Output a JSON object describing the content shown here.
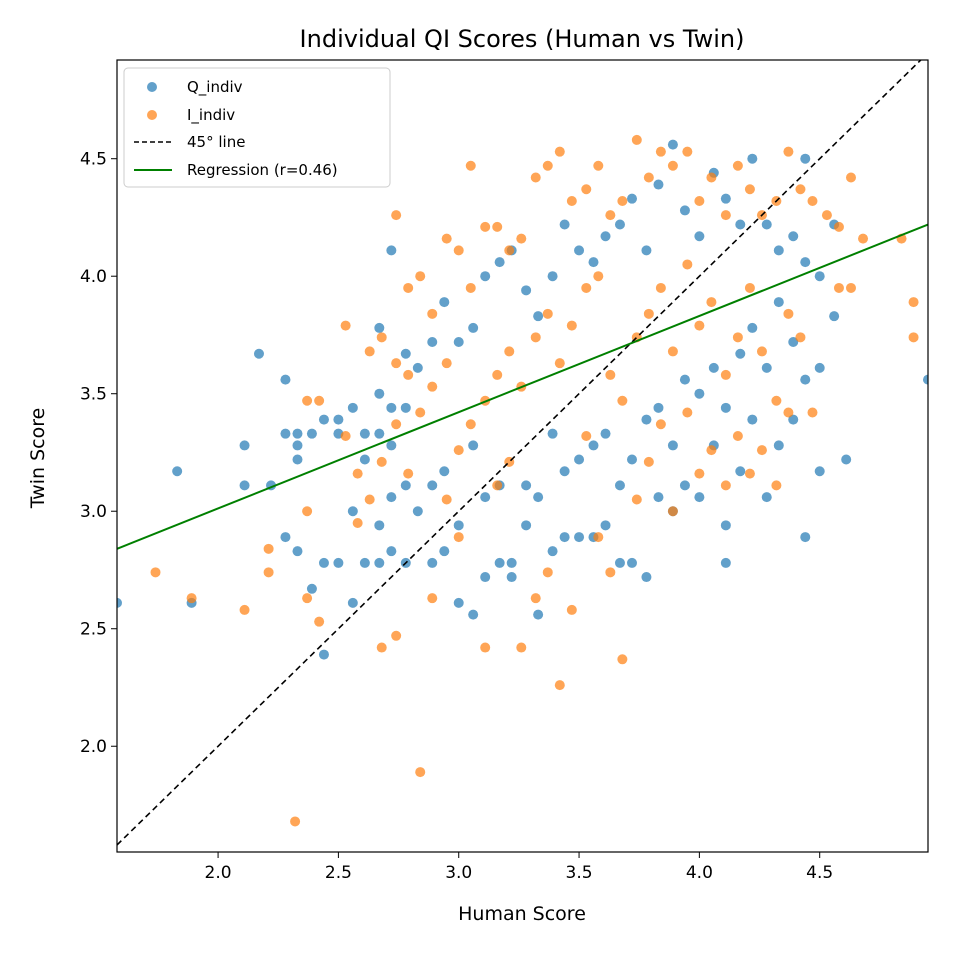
{
  "chart_data": {
    "type": "scatter",
    "title": "Individual QI Scores (Human vs Twin)",
    "xlabel": "Human Score",
    "ylabel": "Twin Score",
    "xlim": [
      1.58,
      4.95
    ],
    "ylim": [
      1.55,
      4.92
    ],
    "xticks": [
      "2.0",
      "2.5",
      "3.0",
      "3.5",
      "4.0",
      "4.5"
    ],
    "yticks": [
      "2.0",
      "2.5",
      "3.0",
      "3.5",
      "4.0",
      "4.5"
    ],
    "legend_position": "top-left",
    "grid": false,
    "series": [
      {
        "name": "Q_indiv",
        "color": "#1f77b4",
        "points": [
          [
            1.58,
            2.61
          ],
          [
            1.83,
            3.17
          ],
          [
            1.89,
            2.61
          ],
          [
            2.11,
            3.28
          ],
          [
            2.11,
            3.11
          ],
          [
            2.17,
            3.67
          ],
          [
            2.22,
            3.11
          ],
          [
            2.28,
            3.56
          ],
          [
            2.28,
            3.33
          ],
          [
            2.28,
            2.89
          ],
          [
            2.33,
            3.33
          ],
          [
            2.33,
            3.28
          ],
          [
            2.33,
            3.22
          ],
          [
            2.33,
            2.83
          ],
          [
            2.39,
            3.33
          ],
          [
            2.39,
            2.67
          ],
          [
            2.44,
            3.39
          ],
          [
            2.44,
            2.78
          ],
          [
            2.44,
            2.39
          ],
          [
            2.5,
            3.39
          ],
          [
            2.5,
            3.33
          ],
          [
            2.5,
            2.78
          ],
          [
            2.56,
            3.44
          ],
          [
            2.56,
            3.0
          ],
          [
            2.56,
            2.61
          ],
          [
            2.61,
            3.33
          ],
          [
            2.61,
            3.22
          ],
          [
            2.61,
            2.78
          ],
          [
            2.67,
            3.78
          ],
          [
            2.67,
            3.5
          ],
          [
            2.67,
            3.33
          ],
          [
            2.67,
            2.94
          ],
          [
            2.67,
            2.78
          ],
          [
            2.72,
            4.11
          ],
          [
            2.72,
            3.44
          ],
          [
            2.72,
            3.28
          ],
          [
            2.72,
            3.06
          ],
          [
            2.72,
            2.83
          ],
          [
            2.78,
            3.67
          ],
          [
            2.78,
            3.44
          ],
          [
            2.78,
            3.11
          ],
          [
            2.78,
            2.78
          ],
          [
            2.83,
            3.61
          ],
          [
            2.83,
            3.0
          ],
          [
            2.89,
            3.72
          ],
          [
            2.89,
            3.11
          ],
          [
            2.89,
            2.78
          ],
          [
            2.94,
            3.89
          ],
          [
            2.94,
            3.17
          ],
          [
            2.94,
            2.83
          ],
          [
            3.0,
            3.72
          ],
          [
            3.0,
            2.94
          ],
          [
            3.0,
            2.61
          ],
          [
            3.06,
            3.78
          ],
          [
            3.06,
            3.28
          ],
          [
            3.06,
            2.56
          ],
          [
            3.11,
            4.0
          ],
          [
            3.11,
            3.06
          ],
          [
            3.11,
            2.72
          ],
          [
            3.17,
            4.06
          ],
          [
            3.17,
            3.11
          ],
          [
            3.17,
            2.78
          ],
          [
            3.22,
            4.11
          ],
          [
            3.22,
            2.78
          ],
          [
            3.22,
            2.72
          ],
          [
            3.28,
            3.94
          ],
          [
            3.28,
            3.11
          ],
          [
            3.28,
            2.94
          ],
          [
            3.33,
            3.83
          ],
          [
            3.33,
            3.06
          ],
          [
            3.33,
            2.56
          ],
          [
            3.39,
            4.0
          ],
          [
            3.39,
            3.33
          ],
          [
            3.39,
            2.83
          ],
          [
            3.44,
            4.22
          ],
          [
            3.44,
            3.17
          ],
          [
            3.44,
            2.89
          ],
          [
            3.5,
            4.11
          ],
          [
            3.5,
            3.22
          ],
          [
            3.5,
            2.89
          ],
          [
            3.56,
            4.06
          ],
          [
            3.56,
            3.28
          ],
          [
            3.56,
            2.89
          ],
          [
            3.61,
            4.17
          ],
          [
            3.61,
            3.33
          ],
          [
            3.61,
            2.94
          ],
          [
            3.67,
            4.22
          ],
          [
            3.67,
            3.11
          ],
          [
            3.67,
            2.78
          ],
          [
            3.72,
            4.33
          ],
          [
            3.72,
            3.22
          ],
          [
            3.72,
            2.78
          ],
          [
            3.78,
            4.11
          ],
          [
            3.78,
            3.39
          ],
          [
            3.78,
            2.72
          ],
          [
            3.83,
            4.39
          ],
          [
            3.83,
            3.44
          ],
          [
            3.83,
            3.06
          ],
          [
            3.89,
            4.56
          ],
          [
            3.89,
            3.28
          ],
          [
            3.89,
            3.0
          ],
          [
            3.94,
            4.28
          ],
          [
            3.94,
            3.56
          ],
          [
            3.94,
            3.11
          ],
          [
            4.0,
            4.17
          ],
          [
            4.0,
            3.5
          ],
          [
            4.0,
            3.06
          ],
          [
            4.06,
            4.44
          ],
          [
            4.06,
            3.61
          ],
          [
            4.06,
            3.28
          ],
          [
            4.11,
            4.33
          ],
          [
            4.11,
            3.44
          ],
          [
            4.11,
            2.94
          ],
          [
            4.11,
            2.78
          ],
          [
            4.17,
            4.22
          ],
          [
            4.17,
            3.67
          ],
          [
            4.17,
            3.17
          ],
          [
            4.22,
            4.5
          ],
          [
            4.22,
            3.78
          ],
          [
            4.22,
            3.39
          ],
          [
            4.28,
            4.22
          ],
          [
            4.28,
            3.61
          ],
          [
            4.28,
            3.06
          ],
          [
            4.33,
            4.11
          ],
          [
            4.33,
            3.89
          ],
          [
            4.33,
            3.28
          ],
          [
            4.39,
            4.17
          ],
          [
            4.39,
            3.72
          ],
          [
            4.39,
            3.39
          ],
          [
            4.44,
            4.5
          ],
          [
            4.44,
            4.06
          ],
          [
            4.44,
            3.56
          ],
          [
            4.44,
            2.89
          ],
          [
            4.5,
            4.0
          ],
          [
            4.5,
            3.61
          ],
          [
            4.5,
            3.17
          ],
          [
            4.56,
            4.22
          ],
          [
            4.56,
            3.83
          ],
          [
            4.61,
            3.22
          ],
          [
            4.95,
            3.56
          ]
        ]
      },
      {
        "name": "I_indiv",
        "color": "#ff7f0e",
        "points": [
          [
            1.74,
            2.74
          ],
          [
            1.89,
            2.63
          ],
          [
            2.11,
            2.58
          ],
          [
            2.21,
            2.84
          ],
          [
            2.21,
            2.74
          ],
          [
            2.32,
            1.68
          ],
          [
            2.37,
            3.47
          ],
          [
            2.37,
            3.0
          ],
          [
            2.37,
            2.63
          ],
          [
            2.42,
            3.47
          ],
          [
            2.42,
            2.53
          ],
          [
            2.53,
            3.79
          ],
          [
            2.53,
            3.32
          ],
          [
            2.58,
            3.16
          ],
          [
            2.58,
            2.95
          ],
          [
            2.63,
            3.68
          ],
          [
            2.63,
            3.05
          ],
          [
            2.68,
            3.74
          ],
          [
            2.68,
            3.21
          ],
          [
            2.68,
            2.42
          ],
          [
            2.74,
            4.26
          ],
          [
            2.74,
            3.63
          ],
          [
            2.74,
            3.37
          ],
          [
            2.74,
            2.47
          ],
          [
            2.79,
            3.95
          ],
          [
            2.79,
            3.58
          ],
          [
            2.79,
            3.16
          ],
          [
            2.84,
            4.0
          ],
          [
            2.84,
            3.42
          ],
          [
            2.84,
            1.89
          ],
          [
            2.89,
            3.84
          ],
          [
            2.89,
            3.53
          ],
          [
            2.89,
            2.63
          ],
          [
            2.95,
            4.16
          ],
          [
            2.95,
            3.63
          ],
          [
            2.95,
            3.05
          ],
          [
            3.0,
            4.11
          ],
          [
            3.0,
            3.26
          ],
          [
            3.0,
            2.89
          ],
          [
            3.05,
            4.47
          ],
          [
            3.05,
            3.95
          ],
          [
            3.05,
            3.37
          ],
          [
            3.11,
            4.21
          ],
          [
            3.11,
            3.47
          ],
          [
            3.11,
            2.42
          ],
          [
            3.16,
            4.21
          ],
          [
            3.16,
            3.58
          ],
          [
            3.16,
            3.11
          ],
          [
            3.21,
            4.11
          ],
          [
            3.21,
            3.68
          ],
          [
            3.21,
            3.21
          ],
          [
            3.26,
            4.16
          ],
          [
            3.26,
            3.53
          ],
          [
            3.26,
            2.42
          ],
          [
            3.32,
            4.42
          ],
          [
            3.32,
            3.74
          ],
          [
            3.32,
            2.63
          ],
          [
            3.37,
            4.47
          ],
          [
            3.37,
            3.84
          ],
          [
            3.37,
            2.74
          ],
          [
            3.42,
            4.53
          ],
          [
            3.42,
            3.63
          ],
          [
            3.42,
            2.26
          ],
          [
            3.47,
            4.32
          ],
          [
            3.47,
            3.79
          ],
          [
            3.47,
            2.58
          ],
          [
            3.53,
            4.37
          ],
          [
            3.53,
            3.95
          ],
          [
            3.53,
            3.32
          ],
          [
            3.58,
            4.47
          ],
          [
            3.58,
            4.0
          ],
          [
            3.58,
            2.89
          ],
          [
            3.63,
            4.26
          ],
          [
            3.63,
            3.58
          ],
          [
            3.63,
            2.74
          ],
          [
            3.68,
            4.32
          ],
          [
            3.68,
            3.47
          ],
          [
            3.68,
            2.37
          ],
          [
            3.74,
            4.58
          ],
          [
            3.74,
            3.74
          ],
          [
            3.74,
            3.05
          ],
          [
            3.79,
            4.42
          ],
          [
            3.79,
            3.84
          ],
          [
            3.79,
            3.21
          ],
          [
            3.84,
            4.53
          ],
          [
            3.84,
            3.95
          ],
          [
            3.84,
            3.37
          ],
          [
            3.89,
            4.47
          ],
          [
            3.89,
            3.68
          ],
          [
            3.89,
            3.0
          ],
          [
            3.95,
            4.53
          ],
          [
            3.95,
            4.05
          ],
          [
            3.95,
            3.42
          ],
          [
            4.0,
            4.32
          ],
          [
            4.0,
            3.79
          ],
          [
            4.0,
            3.16
          ],
          [
            4.05,
            4.42
          ],
          [
            4.05,
            3.89
          ],
          [
            4.05,
            3.26
          ],
          [
            4.11,
            4.26
          ],
          [
            4.11,
            3.58
          ],
          [
            4.11,
            3.11
          ],
          [
            4.16,
            4.47
          ],
          [
            4.16,
            3.74
          ],
          [
            4.16,
            3.32
          ],
          [
            4.21,
            4.37
          ],
          [
            4.21,
            3.95
          ],
          [
            4.21,
            3.16
          ],
          [
            4.26,
            4.26
          ],
          [
            4.26,
            3.68
          ],
          [
            4.26,
            3.26
          ],
          [
            4.32,
            4.32
          ],
          [
            4.32,
            3.47
          ],
          [
            4.32,
            3.11
          ],
          [
            4.37,
            4.53
          ],
          [
            4.37,
            3.84
          ],
          [
            4.37,
            3.42
          ],
          [
            4.42,
            4.37
          ],
          [
            4.42,
            3.74
          ],
          [
            4.47,
            4.32
          ],
          [
            4.47,
            3.42
          ],
          [
            4.53,
            4.26
          ],
          [
            4.58,
            4.21
          ],
          [
            4.58,
            3.95
          ],
          [
            4.63,
            4.42
          ],
          [
            4.63,
            3.95
          ],
          [
            4.68,
            4.16
          ],
          [
            4.84,
            4.16
          ],
          [
            4.89,
            3.89
          ],
          [
            4.89,
            3.74
          ]
        ]
      }
    ],
    "reference_line": {
      "name": "45° line",
      "slope": 1,
      "intercept": 0,
      "color": "#000000",
      "style": "dashed"
    },
    "regression": {
      "name": "Regression (r=0.46)",
      "color": "#008000",
      "x": [
        1.58,
        4.95
      ],
      "y": [
        2.84,
        4.22
      ]
    }
  }
}
